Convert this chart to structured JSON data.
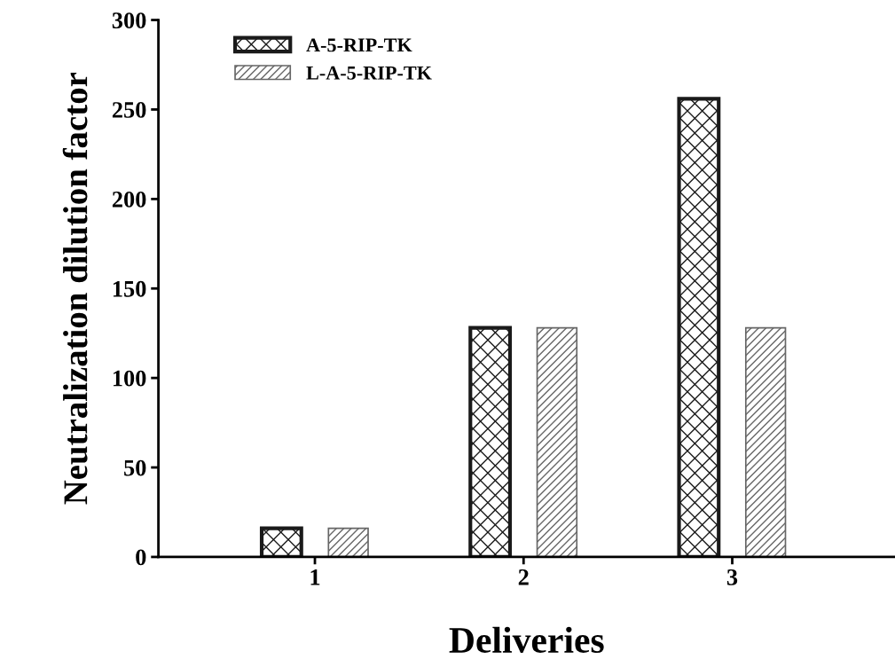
{
  "chart_data": {
    "type": "bar",
    "xlabel": "Deliveries",
    "ylabel": "Neutralization dilution factor",
    "categories": [
      "1",
      "2",
      "3"
    ],
    "series": [
      {
        "name": "A-5-RIP-TK",
        "color": "#1a1a1a",
        "values": [
          16,
          128,
          256
        ]
      },
      {
        "name": "L-A-5-RIP-TK",
        "color": "#666666",
        "values": [
          16,
          128,
          128
        ]
      }
    ],
    "ylim": [
      0,
      300
    ],
    "yticks": [
      0,
      50,
      100,
      150,
      200,
      250,
      300
    ],
    "grid": false,
    "legend": "top left"
  }
}
